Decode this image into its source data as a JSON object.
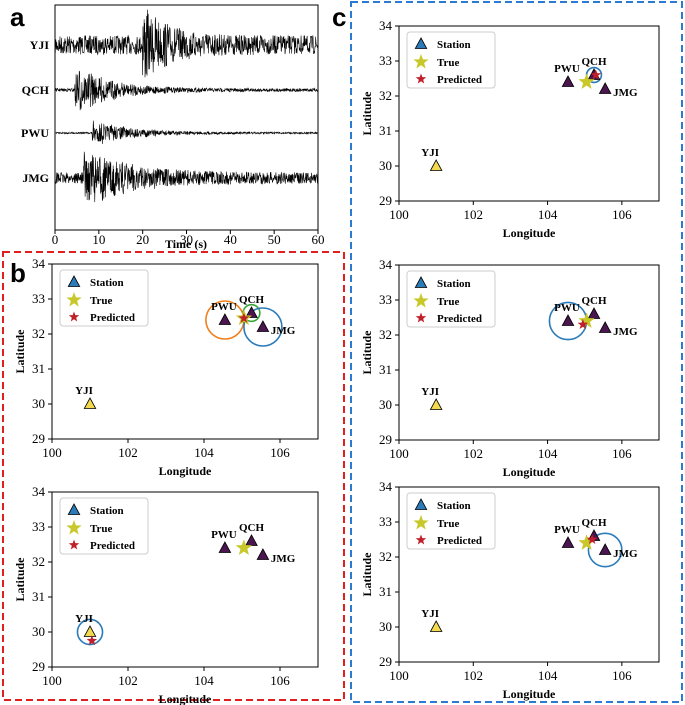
{
  "panels": {
    "a": "a",
    "b": "b",
    "c": "c"
  },
  "waveform_chart": {
    "type": "line",
    "xlabel": "Time (s)",
    "xlim": [
      0,
      60
    ],
    "xticks": [
      0,
      10,
      20,
      30,
      40,
      50,
      60
    ],
    "traces": [
      {
        "name": "YJI",
        "onset_s": 20,
        "noise_amp": 0.28,
        "event_amp": 1.0,
        "decay_s": 6
      },
      {
        "name": "QCH",
        "onset_s": 4.5,
        "noise_amp": 0.06,
        "event_amp": 1.0,
        "decay_s": 8
      },
      {
        "name": "PWU",
        "onset_s": 8.5,
        "noise_amp": 0.05,
        "event_amp": 0.85,
        "decay_s": 9
      },
      {
        "name": "JMG",
        "onset_s": 6.5,
        "noise_amp": 0.2,
        "event_amp": 1.0,
        "decay_s": 10
      }
    ]
  },
  "chart_data": [
    {
      "type": "scatter",
      "panel": "b",
      "xlabel": "Longitude",
      "ylabel": "Latitude",
      "xlim": [
        100,
        107
      ],
      "ylim": [
        29,
        34
      ],
      "xticks": [
        100,
        102,
        104,
        106
      ],
      "yticks": [
        29,
        30,
        31,
        32,
        33,
        34
      ],
      "legend": [
        "Station",
        "True",
        "Predicted"
      ],
      "legend_position": "top-left",
      "stations": [
        {
          "name": "YJI",
          "lon": 101.0,
          "lat": 30.0,
          "color": "#f2d94e"
        },
        {
          "name": "PWU",
          "lon": 104.55,
          "lat": 32.4,
          "color": "#4b1650"
        },
        {
          "name": "QCH",
          "lon": 105.25,
          "lat": 32.6,
          "color": "#4b1650"
        },
        {
          "name": "JMG",
          "lon": 105.55,
          "lat": 32.2,
          "color": "#4b1650"
        }
      ],
      "true": {
        "lon": 105.05,
        "lat": 32.45
      },
      "predicted": {
        "lon": 105.05,
        "lat": 32.45
      },
      "circles": [
        {
          "lon": 104.55,
          "lat": 32.4,
          "r_deg": 0.5,
          "color": "#f07f1d"
        },
        {
          "lon": 105.25,
          "lat": 32.6,
          "r_deg": 0.22,
          "color": "#3aa63a"
        },
        {
          "lon": 105.55,
          "lat": 32.2,
          "r_deg": 0.5,
          "color": "#2b7bb9"
        }
      ]
    },
    {
      "type": "scatter",
      "panel": "b",
      "xlabel": "Longitude",
      "ylabel": "Latitude",
      "xlim": [
        100,
        107
      ],
      "ylim": [
        29,
        34
      ],
      "xticks": [
        100,
        102,
        104,
        106
      ],
      "yticks": [
        29,
        30,
        31,
        32,
        33,
        34
      ],
      "legend": [
        "Station",
        "True",
        "Predicted"
      ],
      "legend_position": "top-left",
      "stations": [
        {
          "name": "YJI",
          "lon": 101.0,
          "lat": 30.0,
          "color": "#f2d94e"
        },
        {
          "name": "PWU",
          "lon": 104.55,
          "lat": 32.4,
          "color": "#4b1650"
        },
        {
          "name": "QCH",
          "lon": 105.25,
          "lat": 32.6,
          "color": "#4b1650"
        },
        {
          "name": "JMG",
          "lon": 105.55,
          "lat": 32.2,
          "color": "#4b1650"
        }
      ],
      "true": {
        "lon": 105.05,
        "lat": 32.4
      },
      "predicted": {
        "lon": 101.05,
        "lat": 29.75
      },
      "circles": [
        {
          "lon": 101.0,
          "lat": 30.0,
          "r_deg": 0.33,
          "color": "#2b7bb9"
        }
      ]
    },
    {
      "type": "scatter",
      "panel": "c",
      "xlabel": "Longitude",
      "ylabel": "Latitude",
      "xlim": [
        100,
        107
      ],
      "ylim": [
        29,
        34
      ],
      "xticks": [
        100,
        102,
        104,
        106
      ],
      "yticks": [
        29,
        30,
        31,
        32,
        33,
        34
      ],
      "legend": [
        "Station",
        "True",
        "Predicted"
      ],
      "legend_position": "top-left",
      "stations": [
        {
          "name": "YJI",
          "lon": 101.0,
          "lat": 30.0,
          "color": "#f2d94e"
        },
        {
          "name": "PWU",
          "lon": 104.55,
          "lat": 32.4,
          "color": "#4b1650"
        },
        {
          "name": "QCH",
          "lon": 105.25,
          "lat": 32.6,
          "color": "#4b1650"
        },
        {
          "name": "JMG",
          "lon": 105.55,
          "lat": 32.2,
          "color": "#4b1650"
        }
      ],
      "true": {
        "lon": 105.05,
        "lat": 32.4
      },
      "predicted": {
        "lon": 105.3,
        "lat": 32.6
      },
      "circles": [
        {
          "lon": 105.25,
          "lat": 32.6,
          "r_deg": 0.2,
          "color": "#2b7bb9"
        }
      ]
    },
    {
      "type": "scatter",
      "panel": "c",
      "xlabel": "Longitude",
      "ylabel": "Latitude",
      "xlim": [
        100,
        107
      ],
      "ylim": [
        29,
        34
      ],
      "xticks": [
        100,
        102,
        104,
        106
      ],
      "yticks": [
        29,
        30,
        31,
        32,
        33,
        34
      ],
      "legend": [
        "Station",
        "True",
        "Predicted"
      ],
      "legend_position": "top-left",
      "stations": [
        {
          "name": "YJI",
          "lon": 101.0,
          "lat": 30.0,
          "color": "#f2d94e"
        },
        {
          "name": "PWU",
          "lon": 104.55,
          "lat": 32.4,
          "color": "#4b1650"
        },
        {
          "name": "QCH",
          "lon": 105.25,
          "lat": 32.6,
          "color": "#4b1650"
        },
        {
          "name": "JMG",
          "lon": 105.55,
          "lat": 32.2,
          "color": "#4b1650"
        }
      ],
      "true": {
        "lon": 105.05,
        "lat": 32.4
      },
      "predicted": {
        "lon": 104.95,
        "lat": 32.3
      },
      "circles": [
        {
          "lon": 104.55,
          "lat": 32.4,
          "r_deg": 0.5,
          "color": "#2b7bb9"
        }
      ]
    },
    {
      "type": "scatter",
      "panel": "c",
      "xlabel": "Longitude",
      "ylabel": "Latitude",
      "xlim": [
        100,
        107
      ],
      "ylim": [
        29,
        34
      ],
      "xticks": [
        100,
        102,
        104,
        106
      ],
      "yticks": [
        29,
        30,
        31,
        32,
        33,
        34
      ],
      "legend": [
        "Station",
        "True",
        "Predicted"
      ],
      "legend_position": "top-left",
      "stations": [
        {
          "name": "YJI",
          "lon": 101.0,
          "lat": 30.0,
          "color": "#f2d94e"
        },
        {
          "name": "PWU",
          "lon": 104.55,
          "lat": 32.4,
          "color": "#4b1650"
        },
        {
          "name": "QCH",
          "lon": 105.25,
          "lat": 32.6,
          "color": "#4b1650"
        },
        {
          "name": "JMG",
          "lon": 105.55,
          "lat": 32.2,
          "color": "#4b1650"
        }
      ],
      "true": {
        "lon": 105.05,
        "lat": 32.4
      },
      "predicted": {
        "lon": 105.2,
        "lat": 32.5
      },
      "circles": [
        {
          "lon": 105.55,
          "lat": 32.2,
          "r_deg": 0.45,
          "color": "#2b7bb9"
        }
      ]
    }
  ],
  "colors": {
    "panel_b_border": "#e02020",
    "panel_c_border": "#2b7bd4",
    "station_legend": "#2b7bb9",
    "true_star": "#c8c82a",
    "predicted_star": "#c0202a",
    "waveform": "#000000"
  }
}
